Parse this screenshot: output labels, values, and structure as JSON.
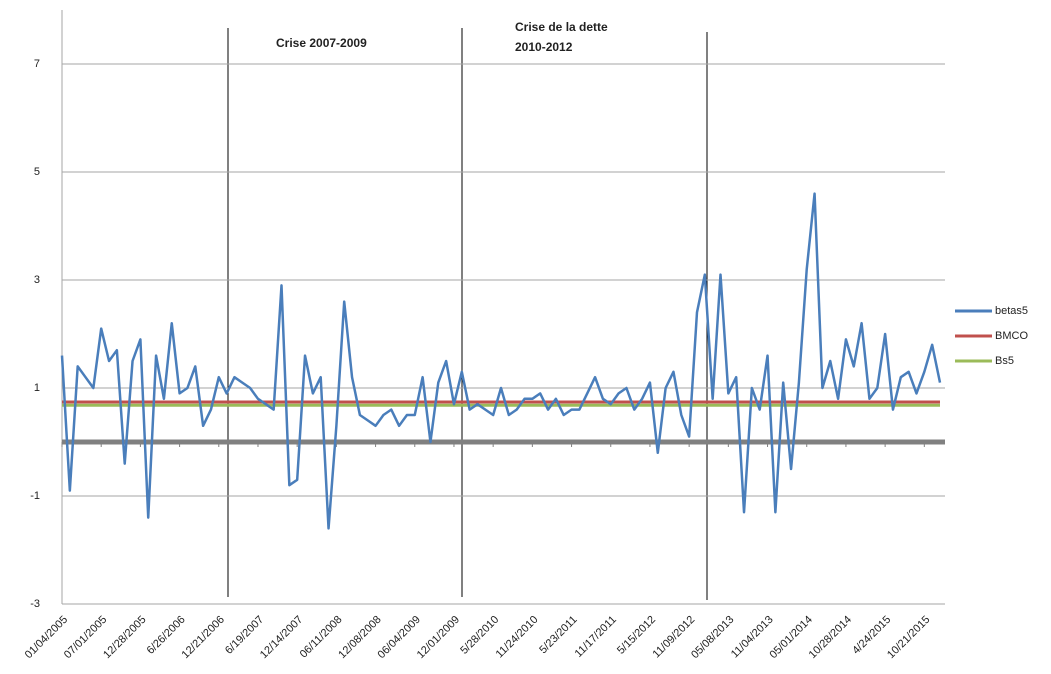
{
  "chart_data": {
    "type": "line",
    "annotations": [
      "Crise 2007-2009",
      "Crise de la dette",
      "2010-2012"
    ],
    "categories": [
      "01/04/2005",
      null,
      null,
      null,
      null,
      "07/01/2005",
      null,
      null,
      null,
      null,
      "12/28/2005",
      null,
      null,
      null,
      null,
      "6/26/2006",
      null,
      null,
      null,
      null,
      "12/21/2006",
      null,
      null,
      null,
      null,
      "6/19/2007",
      null,
      null,
      null,
      null,
      "12/14/2007",
      null,
      null,
      null,
      null,
      "06/11/2008",
      null,
      null,
      null,
      null,
      "12/08/2008",
      null,
      null,
      null,
      null,
      "06/04/2009",
      null,
      null,
      null,
      null,
      "12/01/2009",
      null,
      null,
      null,
      null,
      "5/28/2010",
      null,
      null,
      null,
      null,
      "11/24/2010",
      null,
      null,
      null,
      null,
      "5/23/2011",
      null,
      null,
      null,
      null,
      "11/17/2011",
      null,
      null,
      null,
      null,
      "5/15/2012",
      null,
      null,
      null,
      null,
      "11/09/2012",
      null,
      null,
      null,
      null,
      "05/08/2013",
      null,
      null,
      null,
      null,
      "11/04/2013",
      null,
      null,
      null,
      null,
      "05/01/2014",
      null,
      null,
      null,
      null,
      "10/28/2014",
      null,
      null,
      null,
      null,
      "4/24/2015",
      null,
      null,
      null,
      null,
      "10/21/2015",
      null,
      null
    ],
    "series": [
      {
        "name": "betas5",
        "color": "#4a7ebb",
        "values": [
          1.6,
          -0.9,
          1.4,
          1.2,
          1.0,
          2.1,
          1.5,
          1.7,
          -0.4,
          1.5,
          1.9,
          -1.4,
          1.6,
          0.8,
          2.2,
          0.9,
          1.0,
          1.4,
          0.3,
          0.6,
          1.2,
          0.9,
          1.2,
          1.1,
          1.0,
          0.8,
          0.7,
          0.6,
          2.9,
          -0.8,
          -0.7,
          1.6,
          0.9,
          1.2,
          -1.6,
          0.3,
          2.6,
          1.2,
          0.5,
          0.4,
          0.3,
          0.5,
          0.6,
          0.3,
          0.5,
          0.5,
          1.2,
          0.0,
          1.1,
          1.5,
          0.7,
          1.3,
          0.6,
          0.7,
          0.6,
          0.5,
          1.0,
          0.5,
          0.6,
          0.8,
          0.8,
          0.9,
          0.6,
          0.8,
          0.5,
          0.6,
          0.6,
          0.9,
          1.2,
          0.8,
          0.7,
          0.9,
          1.0,
          0.6,
          0.8,
          1.1,
          -0.2,
          1.0,
          1.3,
          0.5,
          0.1,
          2.4,
          3.1,
          0.8,
          3.1,
          0.9,
          1.2,
          -1.3,
          1.0,
          0.6,
          1.6,
          -1.3,
          1.1,
          -0.5,
          1.1,
          3.2,
          4.6,
          1.0,
          1.5,
          0.8,
          1.9,
          1.4,
          2.2,
          0.8,
          1.0,
          2.0,
          0.6,
          1.2,
          1.3,
          0.9,
          1.3,
          1.8,
          1.1
        ]
      },
      {
        "name": "BMCO",
        "color": "#c0504d",
        "values": [
          0.74,
          0.74,
          0.74,
          0.74,
          0.74,
          0.74,
          0.74,
          0.74,
          0.74,
          0.74,
          0.74,
          0.74,
          0.74,
          0.74,
          0.74,
          0.74,
          0.74,
          0.74,
          0.74,
          0.74,
          0.74,
          0.74,
          0.74,
          0.74,
          0.74,
          0.74,
          0.74,
          0.74,
          0.74,
          0.74,
          0.74,
          0.74,
          0.74,
          0.74,
          0.74,
          0.74,
          0.74,
          0.74,
          0.74,
          0.74,
          0.74,
          0.74,
          0.74,
          0.74,
          0.74,
          0.74,
          0.74,
          0.74,
          0.74,
          0.74,
          0.74,
          0.74,
          0.74,
          0.74,
          0.74,
          0.74,
          0.74,
          0.74,
          0.74,
          0.74,
          0.74,
          0.74,
          0.74,
          0.74,
          0.74,
          0.74,
          0.74,
          0.74,
          0.74,
          0.74,
          0.74,
          0.74,
          0.74,
          0.74,
          0.74,
          0.74,
          0.74,
          0.74,
          0.74,
          0.74,
          0.74,
          0.74,
          0.74,
          0.74,
          0.74,
          0.74,
          0.74,
          0.74,
          0.74,
          0.74,
          0.74,
          0.74,
          0.74,
          0.74,
          0.74,
          0.74,
          0.74,
          0.74,
          0.74,
          0.74,
          0.74,
          0.74,
          0.74,
          0.74,
          0.74,
          0.74,
          0.74,
          0.74,
          0.74,
          0.74,
          0.74,
          0.74,
          0.74
        ]
      },
      {
        "name": "Bs5",
        "color": "#9bbb59",
        "values": [
          0.68,
          0.68,
          0.68,
          0.68,
          0.68,
          0.68,
          0.68,
          0.68,
          0.68,
          0.68,
          0.68,
          0.68,
          0.68,
          0.68,
          0.68,
          0.68,
          0.68,
          0.68,
          0.68,
          0.68,
          0.68,
          0.68,
          0.68,
          0.68,
          0.68,
          0.68,
          0.68,
          0.68,
          0.68,
          0.68,
          0.68,
          0.68,
          0.68,
          0.68,
          0.68,
          0.68,
          0.68,
          0.68,
          0.68,
          0.68,
          0.68,
          0.68,
          0.68,
          0.68,
          0.68,
          0.68,
          0.68,
          0.68,
          0.68,
          0.68,
          0.68,
          0.68,
          0.68,
          0.68,
          0.68,
          0.68,
          0.68,
          0.68,
          0.68,
          0.68,
          0.68,
          0.68,
          0.68,
          0.68,
          0.68,
          0.68,
          0.68,
          0.68,
          0.68,
          0.68,
          0.68,
          0.68,
          0.68,
          0.68,
          0.68,
          0.68,
          0.68,
          0.68,
          0.68,
          0.68,
          0.68,
          0.68,
          0.68,
          0.68,
          0.68,
          0.68,
          0.68,
          0.68,
          0.68,
          0.68,
          0.68,
          0.68,
          0.68,
          0.68,
          0.68,
          0.68,
          0.68,
          0.68,
          0.68,
          0.68,
          0.68,
          0.68,
          0.68,
          0.68,
          0.68,
          0.68,
          0.68,
          0.68,
          0.68,
          0.68,
          0.68,
          0.68,
          0.68
        ]
      }
    ],
    "ylim": [
      -3,
      8
    ],
    "yticks": [
      -3,
      -1,
      1,
      3,
      5,
      7
    ],
    "grid": true,
    "legend": "right"
  }
}
